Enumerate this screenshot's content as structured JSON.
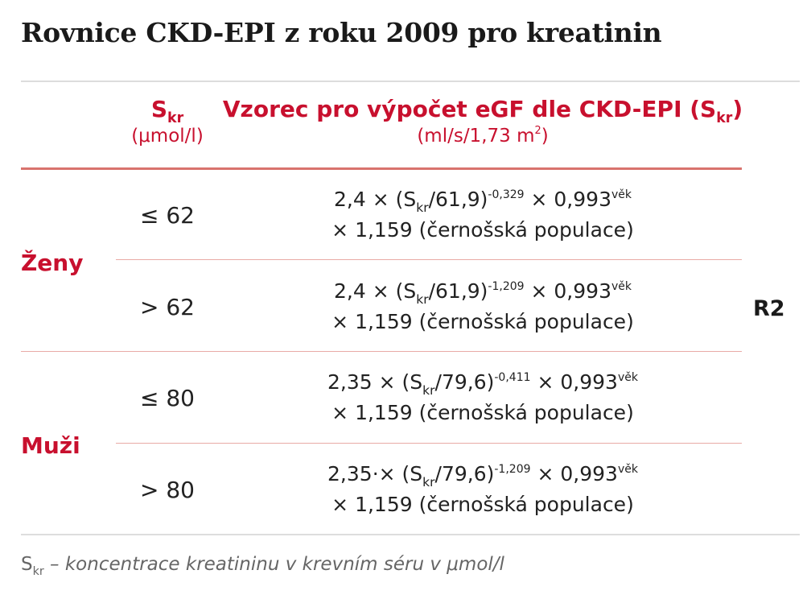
{
  "title": "Rovnice CKD-EPI z roku 2009 pro kreatinin",
  "header": {
    "col1_symbol": "S",
    "col1_subscript": "kr",
    "col1_unit": "(μmol/l)",
    "col2_label": "Vzorec pro výpočet eGF dle CKD-EPI (S",
    "col2_subscript": "kr",
    "col2_close": ")",
    "col2_unit_prefix": "(ml/s/1,73 m",
    "col2_unit_sup": "2",
    "col2_unit_suffix": ")"
  },
  "groups": [
    {
      "label": "Ženy"
    },
    {
      "label": "Muži"
    }
  ],
  "rows": [
    {
      "condition": "≤ 62",
      "line1_a": "2,4 × (S",
      "line1_sub": "kr",
      "line1_b": "/61,9)",
      "line1_exp": "-0,329",
      "line1_c": " × 0,993",
      "line1_exp2": "věk",
      "line2": "× 1,159 (černošská populace)"
    },
    {
      "condition": "> 62",
      "line1_a": "2,4 × (S",
      "line1_sub": "kr",
      "line1_b": "/61,9)",
      "line1_exp": "-1,209",
      "line1_c": " × 0,993",
      "line1_exp2": "věk",
      "line2": "× 1,159 (černošská populace)"
    },
    {
      "condition": "≤ 80",
      "line1_a": "2,35 × (S",
      "line1_sub": "kr",
      "line1_b": "/79,6)",
      "line1_exp": "-0,411",
      "line1_c": " × 0,993",
      "line1_exp2": "věk",
      "line2": "× 1,159 (černošská populace)"
    },
    {
      "condition": "> 80",
      "line1_a": "2,35·× (S",
      "line1_sub": "kr",
      "line1_b": "/79,6)",
      "line1_exp": "-1,209",
      "line1_c": " × 0,993",
      "line1_exp2": "věk",
      "line2": "× 1,159 (černošská populace)"
    }
  ],
  "reference": "R2",
  "footnote": {
    "symbol": "S",
    "subscript": "kr",
    "text": " – koncentrace kreatininu v krevním séru v μmol/l"
  },
  "colors": {
    "accent": "#c8102e",
    "header_rule": "#d9736d",
    "row_rule": "#e9aaa6",
    "outer_rule": "#dddddd",
    "text": "#222222",
    "footnote": "#666666"
  }
}
